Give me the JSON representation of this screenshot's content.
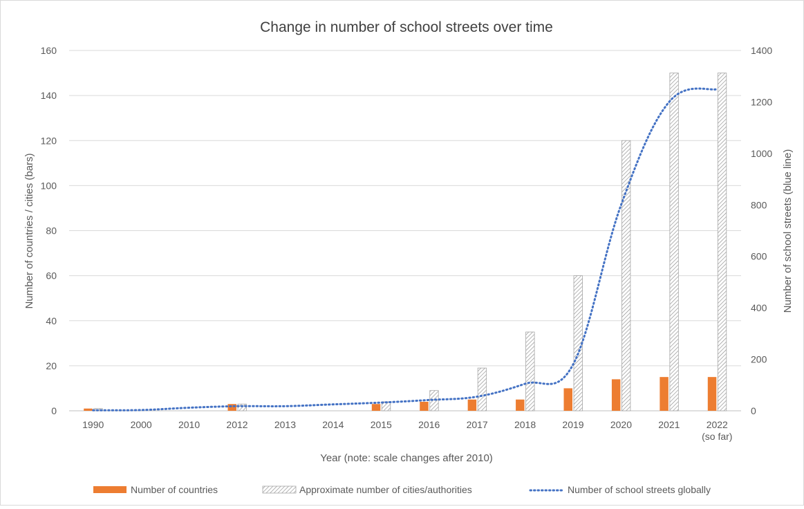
{
  "chart_data": {
    "type": "bar",
    "title": "Change in number of school streets over time",
    "categories": [
      [
        "1990"
      ],
      [
        "2000"
      ],
      [
        "2010"
      ],
      [
        "2012"
      ],
      [
        "2013"
      ],
      [
        "2014"
      ],
      [
        "2015"
      ],
      [
        "2016"
      ],
      [
        "2017"
      ],
      [
        "2018"
      ],
      [
        "2019"
      ],
      [
        "2020"
      ],
      [
        "2021"
      ],
      [
        "2022",
        "(so far)"
      ]
    ],
    "xlabel": "Year (note: scale changes after 2010)",
    "ylabel_left": "Number of countries / cities (bars)",
    "ylabel_right": "Number of school streets (blue line)",
    "y_left": {
      "min": 0,
      "max": 160,
      "ticks": [
        0,
        20,
        40,
        60,
        80,
        100,
        120,
        140,
        160
      ]
    },
    "y_right": {
      "min": 0,
      "max": 1400,
      "ticks": [
        0,
        200,
        400,
        600,
        800,
        1000,
        1200,
        1400
      ]
    },
    "grid": true,
    "legend_position": "bottom",
    "series": [
      {
        "name": "Number of countries",
        "kind": "bar",
        "axis": "left",
        "color": "#ed7d31",
        "values": [
          1,
          null,
          null,
          3,
          null,
          null,
          3,
          4,
          5,
          5,
          10,
          14,
          15,
          15
        ]
      },
      {
        "name": "Approximate number of cities/authorities",
        "kind": "bar",
        "axis": "left",
        "pattern": "diagonal-hatch",
        "color": "#a6a6a6",
        "values": [
          1,
          null,
          null,
          3,
          null,
          null,
          4,
          9,
          19,
          35,
          60,
          120,
          150,
          150
        ]
      },
      {
        "name": "Number of school streets globally",
        "kind": "line",
        "style": "dotted",
        "axis": "right",
        "color": "#4472c4",
        "values": [
          2,
          3,
          12,
          18,
          18,
          25,
          32,
          42,
          55,
          105,
          180,
          800,
          1200,
          1250
        ]
      }
    ]
  }
}
